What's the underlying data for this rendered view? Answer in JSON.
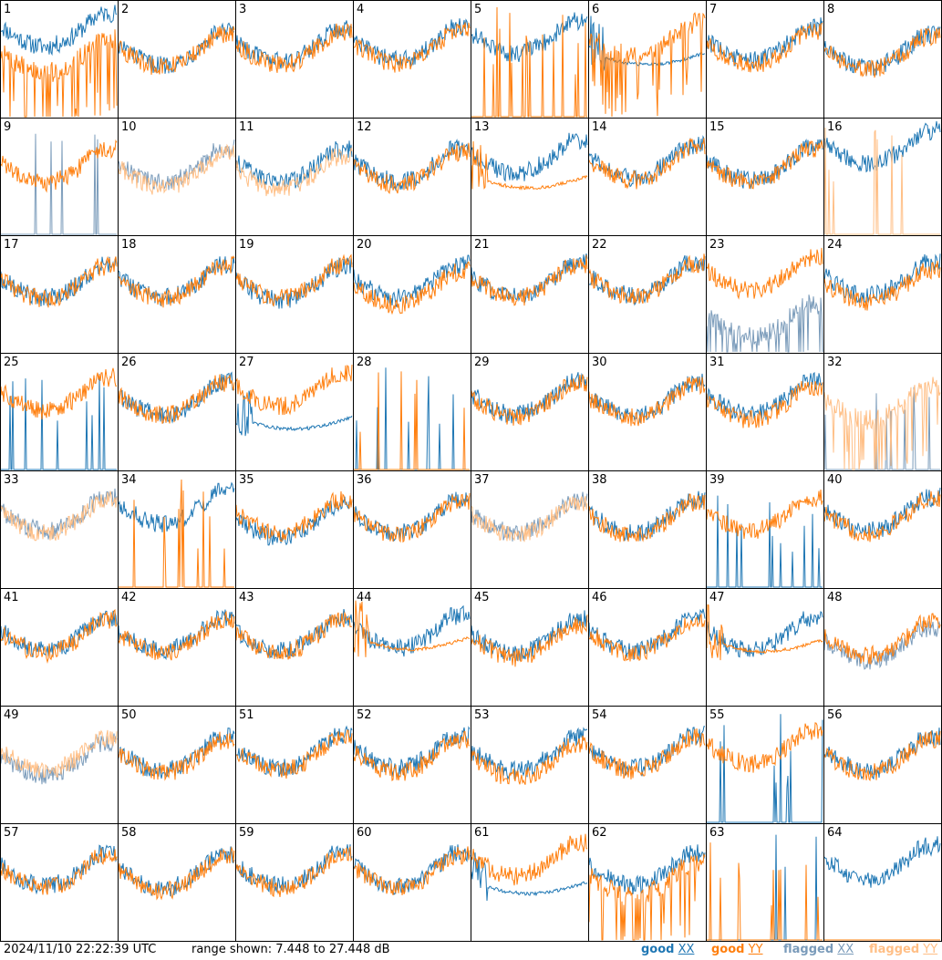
{
  "footer": {
    "timestamp": "2024/11/10 22:22:39 UTC",
    "range": "range shown: 7.448 to 27.448 dB"
  },
  "legend": [
    {
      "key": "good_xx",
      "word": "good",
      "pol": "XX",
      "color": "#1f77b4"
    },
    {
      "key": "good_yy",
      "word": "good",
      "pol": "YY",
      "color": "#ff7f0e"
    },
    {
      "key": "flagged_xx",
      "word": "flagged",
      "pol": "XX",
      "color": "#7a9bba"
    },
    {
      "key": "flagged_yy",
      "word": "flagged",
      "pol": "YY",
      "color": "#ffbf86"
    }
  ],
  "chart_data": {
    "type": "line",
    "description_units": "dB",
    "ylim": [
      7.448,
      27.448
    ],
    "grid": false,
    "legend_placement": "bottom-right",
    "layout": "8x8 small multiples, one panel per antenna",
    "panels": [
      {
        "label": "1",
        "xx": "good",
        "yy": "good",
        "xx_style": "normal",
        "yy_style": "spiky",
        "xx_level": 0.78,
        "yy_level": 0.55
      },
      {
        "label": "2",
        "xx": "good",
        "yy": "good",
        "xx_style": "normal",
        "yy_style": "normal",
        "xx_level": 0.62,
        "yy_level": 0.6
      },
      {
        "label": "3",
        "xx": "good",
        "yy": "good",
        "xx_style": "normal",
        "yy_style": "normal",
        "xx_level": 0.65,
        "yy_level": 0.62
      },
      {
        "label": "4",
        "xx": "good",
        "yy": "good",
        "xx_style": "normal",
        "yy_style": "normal",
        "xx_level": 0.66,
        "yy_level": 0.63
      },
      {
        "label": "5",
        "xx": "good",
        "yy": "good",
        "xx_style": "normal",
        "yy_style": "sparse",
        "xx_level": 0.72,
        "yy_level": 0.0
      },
      {
        "label": "6",
        "xx": "good",
        "yy": "good",
        "xx_style": "smooth",
        "yy_style": "spiky",
        "xx_level": 0.55,
        "yy_level": 0.7
      },
      {
        "label": "7",
        "xx": "good",
        "yy": "good",
        "xx_style": "normal",
        "yy_style": "normal",
        "xx_level": 0.66,
        "yy_level": 0.62
      },
      {
        "label": "8",
        "xx": "good",
        "yy": "good",
        "xx_style": "normal",
        "yy_style": "normal",
        "xx_level": 0.6,
        "yy_level": 0.58
      },
      {
        "label": "9",
        "xx": "flagged",
        "yy": "good",
        "xx_style": "sparse",
        "yy_style": "normal",
        "xx_level": 0.0,
        "yy_level": 0.62
      },
      {
        "label": "10",
        "xx": "flagged",
        "yy": "flagged",
        "xx_style": "normal",
        "yy_style": "normal",
        "xx_level": 0.62,
        "yy_level": 0.58
      },
      {
        "label": "11",
        "xx": "good",
        "yy": "flagged",
        "xx_style": "normal",
        "yy_style": "normal",
        "xx_level": 0.62,
        "yy_level": 0.56
      },
      {
        "label": "12",
        "xx": "good",
        "yy": "good",
        "xx_style": "normal",
        "yy_style": "normal",
        "xx_level": 0.63,
        "yy_level": 0.6
      },
      {
        "label": "13",
        "xx": "good",
        "yy": "good",
        "xx_style": "normal",
        "yy_style": "smooth",
        "xx_level": 0.7,
        "yy_level": 0.5
      },
      {
        "label": "14",
        "xx": "good",
        "yy": "good",
        "xx_style": "normal",
        "yy_style": "normal",
        "xx_level": 0.66,
        "yy_level": 0.64
      },
      {
        "label": "15",
        "xx": "good",
        "yy": "good",
        "xx_style": "normal",
        "yy_style": "normal",
        "xx_level": 0.64,
        "yy_level": 0.62
      },
      {
        "label": "16",
        "xx": "good",
        "yy": "flagged",
        "xx_style": "normal",
        "yy_style": "sparse",
        "xx_level": 0.78,
        "yy_level": 0.0
      },
      {
        "label": "17",
        "xx": "good",
        "yy": "good",
        "xx_style": "normal",
        "yy_style": "normal",
        "xx_level": 0.64,
        "yy_level": 0.63
      },
      {
        "label": "18",
        "xx": "good",
        "yy": "good",
        "xx_style": "normal",
        "yy_style": "normal",
        "xx_level": 0.64,
        "yy_level": 0.63
      },
      {
        "label": "19",
        "xx": "good",
        "yy": "good",
        "xx_style": "normal",
        "yy_style": "normal",
        "xx_level": 0.62,
        "yy_level": 0.64
      },
      {
        "label": "20",
        "xx": "good",
        "yy": "good",
        "xx_style": "normal",
        "yy_style": "normal",
        "xx_level": 0.64,
        "yy_level": 0.58
      },
      {
        "label": "21",
        "xx": "good",
        "yy": "good",
        "xx_style": "normal",
        "yy_style": "normal",
        "xx_level": 0.65,
        "yy_level": 0.64
      },
      {
        "label": "22",
        "xx": "good",
        "yy": "good",
        "xx_style": "normal",
        "yy_style": "normal",
        "xx_level": 0.66,
        "yy_level": 0.65
      },
      {
        "label": "23",
        "xx": "flagged",
        "yy": "good",
        "xx_style": "spiky",
        "yy_style": "normal",
        "xx_level": 0.3,
        "yy_level": 0.7
      },
      {
        "label": "24",
        "xx": "good",
        "yy": "good",
        "xx_style": "normal",
        "yy_style": "normal",
        "xx_level": 0.66,
        "yy_level": 0.6
      },
      {
        "label": "25",
        "xx": "good",
        "yy": "good",
        "xx_style": "sparse",
        "yy_style": "normal",
        "xx_level": 0.0,
        "yy_level": 0.68
      },
      {
        "label": "26",
        "xx": "good",
        "yy": "good",
        "xx_style": "normal",
        "yy_style": "normal",
        "xx_level": 0.64,
        "yy_level": 0.64
      },
      {
        "label": "27",
        "xx": "good",
        "yy": "good",
        "xx_style": "smooth",
        "yy_style": "normal",
        "xx_level": 0.45,
        "yy_level": 0.72
      },
      {
        "label": "28",
        "xx": "good",
        "yy": "good",
        "xx_style": "sparse",
        "yy_style": "sparse",
        "xx_level": 0.0,
        "yy_level": 0.0
      },
      {
        "label": "29",
        "xx": "good",
        "yy": "good",
        "xx_style": "normal",
        "yy_style": "normal",
        "xx_level": 0.65,
        "yy_level": 0.63
      },
      {
        "label": "30",
        "xx": "good",
        "yy": "good",
        "xx_style": "normal",
        "yy_style": "normal",
        "xx_level": 0.64,
        "yy_level": 0.62
      },
      {
        "label": "31",
        "xx": "good",
        "yy": "good",
        "xx_style": "normal",
        "yy_style": "normal",
        "xx_level": 0.65,
        "yy_level": 0.6
      },
      {
        "label": "32",
        "xx": "flagged",
        "yy": "flagged",
        "xx_style": "sparse",
        "yy_style": "spiky",
        "xx_level": 0.0,
        "yy_level": 0.6
      },
      {
        "label": "33",
        "xx": "flagged",
        "yy": "flagged",
        "xx_style": "normal",
        "yy_style": "normal",
        "xx_level": 0.66,
        "yy_level": 0.64
      },
      {
        "label": "34",
        "xx": "good",
        "yy": "good",
        "xx_style": "normal",
        "yy_style": "sparse",
        "xx_level": 0.72,
        "yy_level": 0.0
      },
      {
        "label": "35",
        "xx": "good",
        "yy": "good",
        "xx_style": "normal",
        "yy_style": "normal",
        "xx_level": 0.6,
        "yy_level": 0.64
      },
      {
        "label": "36",
        "xx": "good",
        "yy": "good",
        "xx_style": "normal",
        "yy_style": "normal",
        "xx_level": 0.64,
        "yy_level": 0.62
      },
      {
        "label": "37",
        "xx": "flagged",
        "yy": "flagged",
        "xx_style": "normal",
        "yy_style": "normal",
        "xx_level": 0.64,
        "yy_level": 0.62
      },
      {
        "label": "38",
        "xx": "good",
        "yy": "good",
        "xx_style": "normal",
        "yy_style": "normal",
        "xx_level": 0.64,
        "yy_level": 0.62
      },
      {
        "label": "39",
        "xx": "good",
        "yy": "good",
        "xx_style": "sparse",
        "yy_style": "normal",
        "xx_level": 0.0,
        "yy_level": 0.66
      },
      {
        "label": "40",
        "xx": "good",
        "yy": "good",
        "xx_style": "normal",
        "yy_style": "normal",
        "xx_level": 0.66,
        "yy_level": 0.64
      },
      {
        "label": "41",
        "xx": "good",
        "yy": "good",
        "xx_style": "normal",
        "yy_style": "normal",
        "xx_level": 0.64,
        "yy_level": 0.62
      },
      {
        "label": "42",
        "xx": "good",
        "yy": "good",
        "xx_style": "normal",
        "yy_style": "normal",
        "xx_level": 0.64,
        "yy_level": 0.62
      },
      {
        "label": "43",
        "xx": "good",
        "yy": "good",
        "xx_style": "normal",
        "yy_style": "normal",
        "xx_level": 0.64,
        "yy_level": 0.62
      },
      {
        "label": "44",
        "xx": "good",
        "yy": "good",
        "xx_style": "normal",
        "yy_style": "smooth",
        "xx_level": 0.66,
        "yy_level": 0.58
      },
      {
        "label": "45",
        "xx": "good",
        "yy": "good",
        "xx_style": "normal",
        "yy_style": "normal",
        "xx_level": 0.62,
        "yy_level": 0.58
      },
      {
        "label": "46",
        "xx": "good",
        "yy": "good",
        "xx_style": "normal",
        "yy_style": "normal",
        "xx_level": 0.64,
        "yy_level": 0.62
      },
      {
        "label": "47",
        "xx": "good",
        "yy": "good",
        "xx_style": "normal",
        "yy_style": "smooth",
        "xx_level": 0.64,
        "yy_level": 0.56
      },
      {
        "label": "48",
        "xx": "flagged",
        "yy": "good",
        "xx_style": "normal",
        "yy_style": "normal",
        "xx_level": 0.55,
        "yy_level": 0.6
      },
      {
        "label": "49",
        "xx": "flagged",
        "yy": "flagged",
        "xx_style": "normal",
        "yy_style": "normal",
        "xx_level": 0.58,
        "yy_level": 0.62
      },
      {
        "label": "50",
        "xx": "good",
        "yy": "good",
        "xx_style": "normal",
        "yy_style": "normal",
        "xx_level": 0.62,
        "yy_level": 0.6
      },
      {
        "label": "51",
        "xx": "good",
        "yy": "good",
        "xx_style": "normal",
        "yy_style": "normal",
        "xx_level": 0.64,
        "yy_level": 0.62
      },
      {
        "label": "52",
        "xx": "good",
        "yy": "good",
        "xx_style": "normal",
        "yy_style": "normal",
        "xx_level": 0.64,
        "yy_level": 0.6
      },
      {
        "label": "53",
        "xx": "good",
        "yy": "good",
        "xx_style": "normal",
        "yy_style": "normal",
        "xx_level": 0.62,
        "yy_level": 0.56
      },
      {
        "label": "54",
        "xx": "good",
        "yy": "good",
        "xx_style": "normal",
        "yy_style": "normal",
        "xx_level": 0.64,
        "yy_level": 0.62
      },
      {
        "label": "55",
        "xx": "good",
        "yy": "good",
        "xx_style": "sparse",
        "yy_style": "normal",
        "xx_level": 0.0,
        "yy_level": 0.68
      },
      {
        "label": "56",
        "xx": "good",
        "yy": "good",
        "xx_style": "normal",
        "yy_style": "normal",
        "xx_level": 0.62,
        "yy_level": 0.6
      },
      {
        "label": "57",
        "xx": "good",
        "yy": "good",
        "xx_style": "normal",
        "yy_style": "normal",
        "xx_level": 0.64,
        "yy_level": 0.62
      },
      {
        "label": "58",
        "xx": "good",
        "yy": "good",
        "xx_style": "normal",
        "yy_style": "normal",
        "xx_level": 0.62,
        "yy_level": 0.6
      },
      {
        "label": "59",
        "xx": "good",
        "yy": "good",
        "xx_style": "normal",
        "yy_style": "normal",
        "xx_level": 0.64,
        "yy_level": 0.62
      },
      {
        "label": "60",
        "xx": "good",
        "yy": "good",
        "xx_style": "normal",
        "yy_style": "normal",
        "xx_level": 0.64,
        "yy_level": 0.62
      },
      {
        "label": "61",
        "xx": "good",
        "yy": "good",
        "xx_style": "smooth",
        "yy_style": "normal",
        "xx_level": 0.5,
        "yy_level": 0.72
      },
      {
        "label": "62",
        "xx": "good",
        "yy": "good",
        "xx_style": "normal",
        "yy_style": "spiky",
        "xx_level": 0.64,
        "yy_level": 0.55
      },
      {
        "label": "63",
        "xx": "good",
        "yy": "good",
        "xx_style": "sparse",
        "yy_style": "sparse",
        "xx_level": 0.0,
        "yy_level": 0.0
      },
      {
        "label": "64",
        "xx": "good",
        "yy": "good",
        "xx_style": "normal",
        "yy_style": "flat",
        "xx_level": 0.7,
        "yy_level": 0.0
      }
    ]
  }
}
